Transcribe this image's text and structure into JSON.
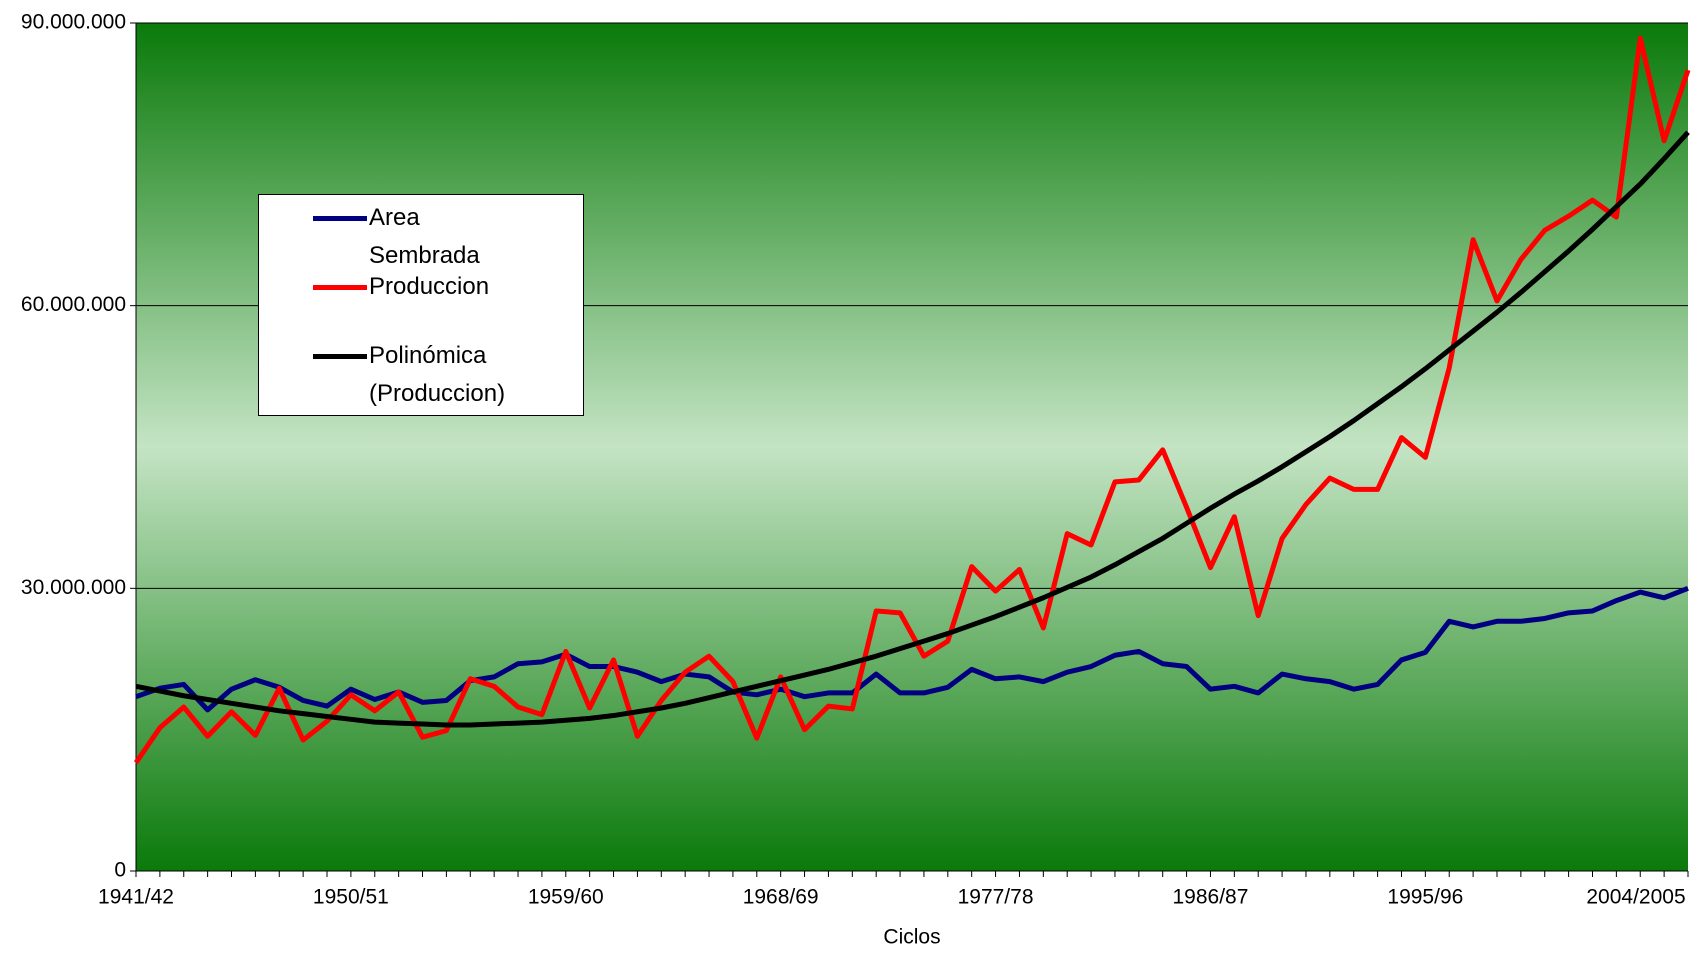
{
  "chart_data": {
    "type": "line",
    "x_label": "Ciclos",
    "categories": [
      "1941/42",
      null,
      null,
      null,
      null,
      null,
      null,
      null,
      null,
      "1950/51",
      null,
      null,
      null,
      null,
      null,
      null,
      null,
      null,
      "1959/60",
      null,
      null,
      null,
      null,
      null,
      null,
      null,
      null,
      "1968/69",
      null,
      null,
      null,
      null,
      null,
      null,
      null,
      null,
      "1977/78",
      null,
      null,
      null,
      null,
      null,
      null,
      null,
      null,
      "1986/87",
      null,
      null,
      null,
      null,
      null,
      null,
      null,
      null,
      "1995/96",
      null,
      null,
      null,
      null,
      null,
      null,
      null,
      null,
      "2004/2005",
      null,
      null
    ],
    "series": [
      {
        "name": "Area Sembrada",
        "color": "#000080",
        "values": [
          18.5,
          19.4,
          19.8,
          17.1,
          19.3,
          20.3,
          19.5,
          18.1,
          17.5,
          19.3,
          18.2,
          19.0,
          17.9,
          18.1,
          20.2,
          20.6,
          22.0,
          22.2,
          23.0,
          21.7,
          21.7,
          21.1,
          20.1,
          20.9,
          20.6,
          19.0,
          18.7,
          19.3,
          18.5,
          18.9,
          18.9,
          20.9,
          18.9,
          18.9,
          19.5,
          21.4,
          20.4,
          20.6,
          20.1,
          21.1,
          21.7,
          22.9,
          23.3,
          22.0,
          21.7,
          19.3,
          19.6,
          18.9,
          20.9,
          20.4,
          20.1,
          19.3,
          19.8,
          22.4,
          23.2,
          26.5,
          25.9,
          26.5,
          26.5,
          26.8,
          27.4,
          27.6,
          28.7,
          29.6,
          29.0,
          30.0
        ]
      },
      {
        "name": "Produccion",
        "color": "#ff0000",
        "values": [
          11.5,
          15.2,
          17.4,
          14.3,
          16.9,
          14.4,
          19.4,
          13.9,
          15.9,
          18.7,
          17.0,
          19.0,
          14.2,
          14.9,
          20.4,
          19.6,
          17.4,
          16.6,
          23.3,
          17.3,
          22.4,
          14.3,
          18.1,
          21.1,
          22.8,
          20.1,
          14.1,
          20.6,
          15.0,
          17.5,
          17.2,
          27.6,
          27.4,
          22.8,
          24.4,
          32.3,
          29.7,
          32.0,
          25.8,
          35.8,
          34.6,
          41.3,
          41.5,
          44.7,
          38.6,
          32.2,
          37.6,
          27.1,
          35.3,
          38.9,
          41.7,
          40.5,
          40.5,
          46.0,
          43.9,
          53.4,
          67.0,
          60.5,
          64.9,
          68.0,
          69.5,
          71.2,
          69.4,
          88.4,
          77.5,
          85.0
        ]
      },
      {
        "name": "Polinómica (Produccion)",
        "color": "#000000",
        "values": [
          19.6,
          19.1,
          18.6,
          18.2,
          17.8,
          17.4,
          17.0,
          16.7,
          16.4,
          16.1,
          15.8,
          15.7,
          15.6,
          15.5,
          15.5,
          15.6,
          15.7,
          15.8,
          16.0,
          16.2,
          16.5,
          16.9,
          17.3,
          17.8,
          18.4,
          19.0,
          19.6,
          20.2,
          20.8,
          21.4,
          22.1,
          22.8,
          23.6,
          24.4,
          25.2,
          26.1,
          27.0,
          28.0,
          29.0,
          30.1,
          31.2,
          32.5,
          33.9,
          35.3,
          36.9,
          38.5,
          40.0,
          41.4,
          42.9,
          44.5,
          46.1,
          47.8,
          49.6,
          51.4,
          53.3,
          55.3,
          57.3,
          59.3,
          61.4,
          63.6,
          65.8,
          68.1,
          70.5,
          72.9,
          75.6,
          78.4
        ]
      }
    ],
    "ylim": [
      0,
      90
    ],
    "yticks": [
      0,
      {
        "value": 30,
        "label": "30.000.000"
      },
      {
        "value": 60,
        "label": "60.000.000"
      },
      {
        "value": 90,
        "label": "90.000.000"
      }
    ],
    "grid": true
  }
}
